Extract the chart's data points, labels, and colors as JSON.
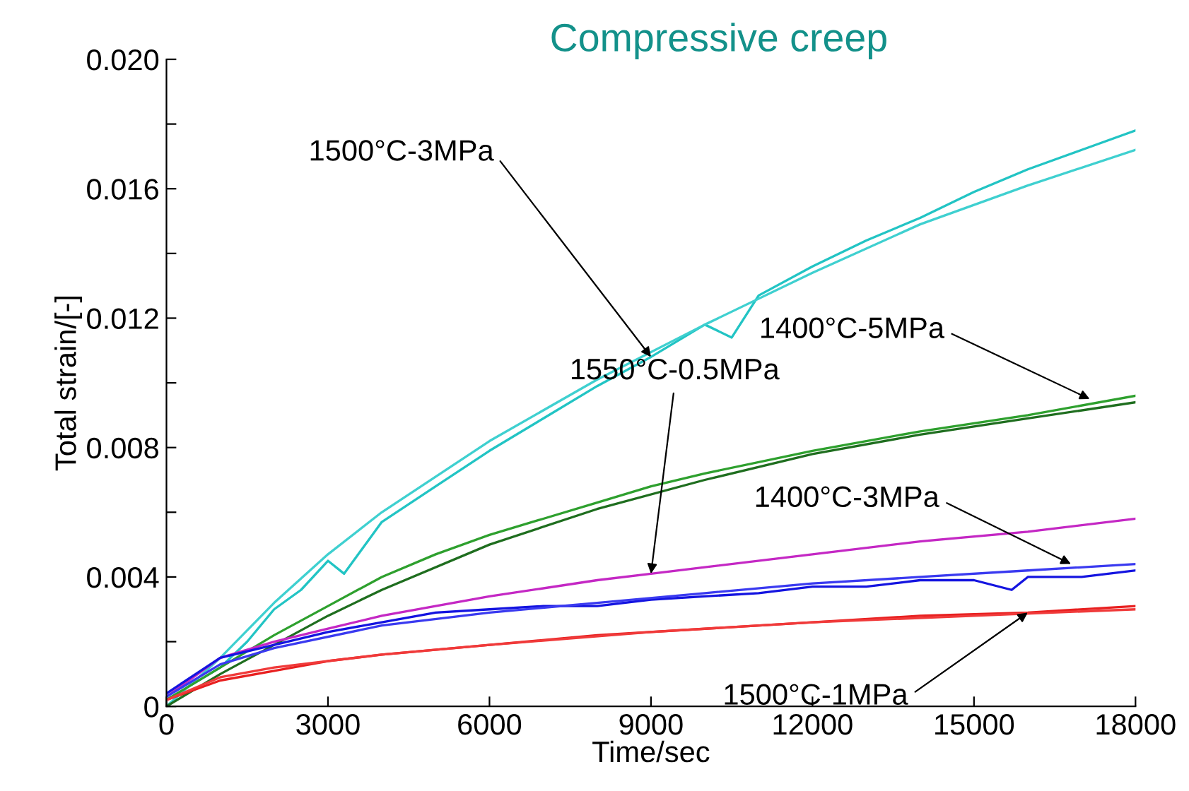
{
  "chart_data": {
    "type": "line",
    "title": "Compressive creep",
    "xlabel": "Time/sec",
    "ylabel": "Total strain/[-]",
    "xlim": [
      0,
      18000
    ],
    "xticks": [
      0,
      3000,
      6000,
      9000,
      12000,
      15000,
      18000
    ],
    "ylim": [
      0,
      0.02
    ],
    "yticks": [
      0,
      {
        "value": 0.002,
        "label": null
      },
      {
        "value": 0.004,
        "label": "0.004"
      },
      {
        "value": 0.006,
        "label": null
      },
      {
        "value": 0.008,
        "label": "0.008"
      },
      {
        "value": 0.01,
        "label": null
      },
      {
        "value": 0.012,
        "label": "0.012"
      },
      {
        "value": 0.014,
        "label": null
      },
      {
        "value": 0.016,
        "label": "0.016"
      },
      {
        "value": 0.018,
        "label": null
      },
      {
        "value": 0.02,
        "label": "0.020"
      }
    ],
    "grid": false,
    "legend": false,
    "series": [
      {
        "color": "#22c4c4",
        "x": [
          0,
          1000,
          1500,
          2000,
          2500,
          3000,
          3300,
          4000,
          5000,
          6000,
          7000,
          8000,
          9000,
          10000,
          10500,
          11000,
          12000,
          13000,
          14000,
          15000,
          16000,
          17000,
          18000
        ],
        "values": [
          0.0002,
          0.0012,
          0.002,
          0.003,
          0.0036,
          0.0045,
          0.0041,
          0.0057,
          0.0068,
          0.0079,
          0.0089,
          0.0099,
          0.0108,
          0.0118,
          0.0114,
          0.0127,
          0.0136,
          0.0144,
          0.0151,
          0.0159,
          0.0166,
          0.0172,
          0.0178
        ]
      },
      {
        "color": "#3fd0d0",
        "x": [
          0,
          1000,
          2000,
          3000,
          4000,
          6000,
          8000,
          10000,
          12000,
          14000,
          16000,
          18000
        ],
        "values": [
          0,
          0.0015,
          0.0032,
          0.0047,
          0.006,
          0.0082,
          0.0101,
          0.0118,
          0.0134,
          0.0149,
          0.0161,
          0.0172
        ]
      },
      {
        "color": "#2ea02e",
        "x": [
          0,
          1000,
          2000,
          3000,
          4000,
          5000,
          6000,
          7000,
          8000,
          9000,
          10000,
          12000,
          14000,
          16000,
          18000
        ],
        "values": [
          0.0002,
          0.0012,
          0.0022,
          0.0031,
          0.004,
          0.0047,
          0.0053,
          0.0058,
          0.0063,
          0.0068,
          0.0072,
          0.0079,
          0.0085,
          0.009,
          0.0096
        ]
      },
      {
        "color": "#1f6e1f",
        "x": [
          0,
          1000,
          2000,
          3000,
          4000,
          6000,
          8000,
          10000,
          12000,
          14000,
          16000,
          18000
        ],
        "values": [
          0,
          0.001,
          0.0019,
          0.0028,
          0.0036,
          0.005,
          0.0061,
          0.007,
          0.0078,
          0.0084,
          0.0089,
          0.0094
        ]
      },
      {
        "color": "#c428c4",
        "x": [
          0,
          1000,
          2000,
          3000,
          4000,
          6000,
          8000,
          9000,
          10000,
          12000,
          14000,
          16000,
          18000
        ],
        "values": [
          0.0003,
          0.0015,
          0.002,
          0.0024,
          0.0028,
          0.0034,
          0.0039,
          0.0041,
          0.0043,
          0.0047,
          0.0051,
          0.0054,
          0.0058
        ]
      },
      {
        "color": "#1414e0",
        "x": [
          0,
          1000,
          2000,
          3000,
          4000,
          5000,
          6000,
          7000,
          8000,
          9000,
          10000,
          11000,
          12000,
          13000,
          14000,
          15000,
          15700,
          16000,
          17000,
          18000
        ],
        "values": [
          0.0004,
          0.0015,
          0.0019,
          0.0023,
          0.0026,
          0.0029,
          0.003,
          0.0031,
          0.0031,
          0.0033,
          0.0034,
          0.0035,
          0.0037,
          0.0037,
          0.0039,
          0.0039,
          0.0036,
          0.004,
          0.004,
          0.0042
        ]
      },
      {
        "color": "#3a3af0",
        "x": [
          0,
          1000,
          2000,
          4000,
          6000,
          8000,
          10000,
          12000,
          14000,
          16000,
          18000
        ],
        "values": [
          0.0003,
          0.0013,
          0.0018,
          0.0025,
          0.0029,
          0.0032,
          0.0035,
          0.0038,
          0.004,
          0.0042,
          0.0044
        ]
      },
      {
        "color": "#e82020",
        "x": [
          0,
          1000,
          2000,
          3000,
          4000,
          6000,
          8000,
          10000,
          12000,
          14000,
          16000,
          18000
        ],
        "values": [
          0.0002,
          0.0008,
          0.0011,
          0.0014,
          0.0016,
          0.0019,
          0.0022,
          0.0024,
          0.0026,
          0.0028,
          0.0029,
          0.0031
        ]
      },
      {
        "color": "#f03a3a",
        "x": [
          0,
          1000,
          2000,
          4000,
          6000,
          9000,
          12000,
          15000,
          18000
        ],
        "values": [
          0.0002,
          0.0009,
          0.0012,
          0.0016,
          0.0019,
          0.0023,
          0.0026,
          0.0028,
          0.003
        ]
      }
    ],
    "annotations": [
      {
        "text": "1500°C-3MPa",
        "x": 9000,
        "y": 0.0108
      },
      {
        "text": "1400°C-5MPa",
        "x": 17150,
        "y": 0.0095
      },
      {
        "text": "1550°C-0.5MPa",
        "x": 9000,
        "y": 0.0041
      },
      {
        "text": "1400°C-3MPa",
        "x": 16800,
        "y": 0.0044
      },
      {
        "text": "1500°C-1MPa",
        "x": 16000,
        "y": 0.0029
      }
    ]
  }
}
